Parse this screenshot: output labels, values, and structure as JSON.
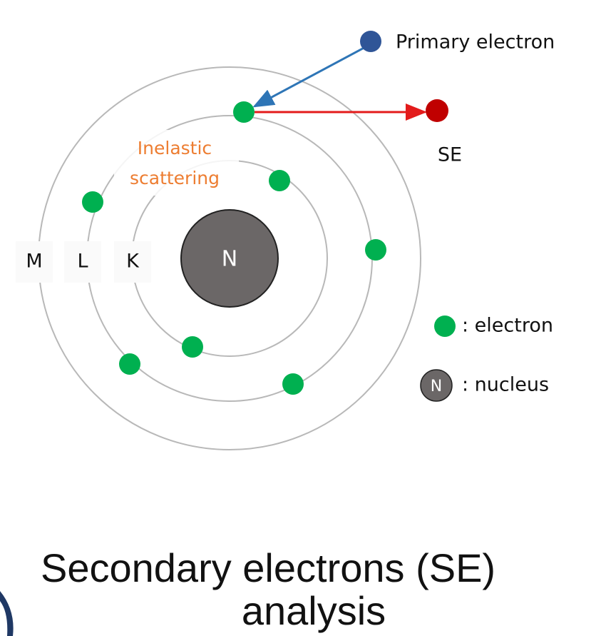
{
  "diagram": {
    "primary_label": "Primary electron",
    "se_label": "SE",
    "scattering_label": [
      "Inelastic",
      "scattering"
    ],
    "shells": [
      "M",
      "L",
      "K"
    ],
    "nucleus_label": "N",
    "legend": {
      "electron": ": electron",
      "nucleus_symbol": "N",
      "nucleus": ": nucleus"
    }
  },
  "title": [
    "Secondary electrons (SE)",
    "analysis"
  ]
}
